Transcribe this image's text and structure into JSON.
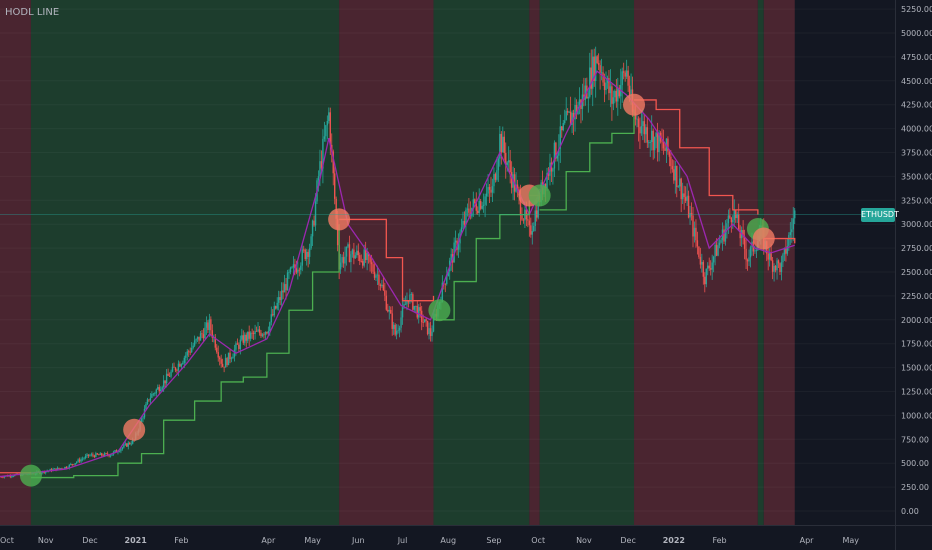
{
  "chart": {
    "indicator_title": "HODL LINE",
    "symbol": "ETHUSDT",
    "current_price": 3100,
    "colors": {
      "background": "#131722",
      "bull_region": "#1d3d2d",
      "bear_region": "#4a2530",
      "candle_up": "#26a69a",
      "candle_down": "#ef5350",
      "hodl_line_bull": "#4caf50",
      "hodl_line_bear": "#f2564f",
      "ma_line": "#9c27b0",
      "buy_marker": "#4caf50",
      "sell_marker": "#f27a64",
      "price_tag": "#26a69a",
      "axis_text": "#b2b5be"
    }
  },
  "chart_data": {
    "type": "candlestick",
    "symbol": "ETHUSDT",
    "title": "HODL LINE",
    "y_ticks": [
      0,
      250,
      500,
      750,
      1000,
      1250,
      1500,
      1750,
      2000,
      2250,
      2500,
      2750,
      3000,
      3250,
      3500,
      3750,
      4000,
      4250,
      4500,
      4750,
      5000,
      5250
    ],
    "ylim": [
      -250,
      5300
    ],
    "y_tick_format": "0.00",
    "x_ticks": [
      "Oct",
      "Nov",
      "Dec",
      "2021",
      "Feb",
      "Apr",
      "May",
      "Jun",
      "Jul",
      "Aug",
      "Sep",
      "Oct",
      "Nov",
      "Dec",
      "2022",
      "Feb",
      "Apr",
      "May"
    ],
    "x_tick_bold": [
      "2021",
      "2022"
    ],
    "x_range": [
      "2020-10-01",
      "2022-05-31"
    ],
    "last_bar_date": "2022-03-24",
    "regions": [
      {
        "start": "2020-10-01",
        "end": "2020-10-22",
        "state": "bear"
      },
      {
        "start": "2020-10-22",
        "end": "2021-05-19",
        "state": "bull"
      },
      {
        "start": "2021-05-19",
        "end": "2021-07-22",
        "state": "bear"
      },
      {
        "start": "2021-07-22",
        "end": "2021-09-25",
        "state": "bull"
      },
      {
        "start": "2021-09-25",
        "end": "2021-10-02",
        "state": "bear"
      },
      {
        "start": "2021-10-02",
        "end": "2021-12-05",
        "state": "bull"
      },
      {
        "start": "2021-12-05",
        "end": "2022-02-27",
        "state": "bear"
      },
      {
        "start": "2022-02-27",
        "end": "2022-03-03",
        "state": "bull"
      },
      {
        "start": "2022-03-03",
        "end": "2022-03-24",
        "state": "bear"
      }
    ],
    "price_path": [
      [
        "2020-10-01",
        360
      ],
      [
        "2020-10-25",
        395
      ],
      [
        "2020-11-15",
        460
      ],
      [
        "2020-11-30",
        580
      ],
      [
        "2020-12-15",
        590
      ],
      [
        "2020-12-31",
        740
      ],
      [
        "2021-01-10",
        1180
      ],
      [
        "2021-01-20",
        1350
      ],
      [
        "2021-02-05",
        1650
      ],
      [
        "2021-02-20",
        1950
      ],
      [
        "2021-03-01",
        1520
      ],
      [
        "2021-03-15",
        1800
      ],
      [
        "2021-03-31",
        1900
      ],
      [
        "2021-04-15",
        2450
      ],
      [
        "2021-04-30",
        2800
      ],
      [
        "2021-05-05",
        3500
      ],
      [
        "2021-05-12",
        4150
      ],
      [
        "2021-05-19",
        2600
      ],
      [
        "2021-05-25",
        2700
      ],
      [
        "2021-06-05",
        2650
      ],
      [
        "2021-06-15",
        2450
      ],
      [
        "2021-06-26",
        1850
      ],
      [
        "2021-07-05",
        2250
      ],
      [
        "2021-07-20",
        1850
      ],
      [
        "2021-07-31",
        2500
      ],
      [
        "2021-08-15",
        3150
      ],
      [
        "2021-08-31",
        3350
      ],
      [
        "2021-09-05",
        3900
      ],
      [
        "2021-09-15",
        3400
      ],
      [
        "2021-09-25",
        2900
      ],
      [
        "2021-10-05",
        3450
      ],
      [
        "2021-10-20",
        4050
      ],
      [
        "2021-10-31",
        4300
      ],
      [
        "2021-11-10",
        4750
      ],
      [
        "2021-11-20",
        4300
      ],
      [
        "2021-11-30",
        4600
      ],
      [
        "2021-12-04",
        4150
      ],
      [
        "2021-12-15",
        3950
      ],
      [
        "2021-12-28",
        3750
      ],
      [
        "2022-01-10",
        3200
      ],
      [
        "2022-01-22",
        2450
      ],
      [
        "2022-02-05",
        2950
      ],
      [
        "2022-02-10",
        3150
      ],
      [
        "2022-02-20",
        2650
      ],
      [
        "2022-03-01",
        2900
      ],
      [
        "2022-03-08",
        2600
      ],
      [
        "2022-03-15",
        2550
      ],
      [
        "2022-03-24",
        3100
      ]
    ],
    "series": [
      {
        "name": "HODL LINE",
        "segments": [
          {
            "state": "bear",
            "points": [
              [
                "2020-10-01",
                400
              ],
              [
                "2020-10-22",
                400
              ]
            ]
          },
          {
            "state": "bull",
            "points": [
              [
                "2020-10-22",
                350
              ],
              [
                "2020-11-20",
                370
              ],
              [
                "2020-12-20",
                500
              ],
              [
                "2021-01-05",
                600
              ],
              [
                "2021-01-20",
                950
              ],
              [
                "2021-02-10",
                1150
              ],
              [
                "2021-02-28",
                1350
              ],
              [
                "2021-03-15",
                1400
              ],
              [
                "2021-03-31",
                1650
              ],
              [
                "2021-04-15",
                2100
              ],
              [
                "2021-05-01",
                2500
              ],
              [
                "2021-05-19",
                3000
              ]
            ]
          },
          {
            "state": "bear",
            "points": [
              [
                "2021-05-19",
                3050
              ],
              [
                "2021-06-10",
                3050
              ],
              [
                "2021-06-20",
                2650
              ],
              [
                "2021-07-01",
                2200
              ],
              [
                "2021-07-22",
                2250
              ]
            ]
          },
          {
            "state": "bull",
            "points": [
              [
                "2021-07-22",
                2000
              ],
              [
                "2021-08-05",
                2400
              ],
              [
                "2021-08-20",
                2850
              ],
              [
                "2021-09-05",
                3100
              ],
              [
                "2021-09-25",
                3250
              ]
            ]
          },
          {
            "state": "bear",
            "points": [
              [
                "2021-09-25",
                3300
              ],
              [
                "2021-10-02",
                3300
              ]
            ]
          },
          {
            "state": "bull",
            "points": [
              [
                "2021-10-02",
                3150
              ],
              [
                "2021-10-20",
                3550
              ],
              [
                "2021-11-05",
                3850
              ],
              [
                "2021-11-20",
                3950
              ],
              [
                "2021-12-05",
                4200
              ]
            ]
          },
          {
            "state": "bear",
            "points": [
              [
                "2021-12-05",
                4300
              ],
              [
                "2021-12-20",
                4200
              ],
              [
                "2022-01-05",
                3800
              ],
              [
                "2022-01-25",
                3300
              ],
              [
                "2022-02-10",
                3150
              ],
              [
                "2022-02-27",
                3100
              ]
            ]
          },
          {
            "state": "bull",
            "points": [
              [
                "2022-02-27",
                2950
              ],
              [
                "2022-03-03",
                2950
              ]
            ]
          },
          {
            "state": "bear",
            "points": [
              [
                "2022-03-03",
                2850
              ],
              [
                "2022-03-24",
                2800
              ]
            ]
          }
        ]
      },
      {
        "name": "MA",
        "points": [
          [
            "2020-10-01",
            360
          ],
          [
            "2020-11-15",
            440
          ],
          [
            "2020-12-20",
            620
          ],
          [
            "2021-01-10",
            1100
          ],
          [
            "2021-02-05",
            1550
          ],
          [
            "2021-02-20",
            1850
          ],
          [
            "2021-03-10",
            1650
          ],
          [
            "2021-03-31",
            1800
          ],
          [
            "2021-04-15",
            2300
          ],
          [
            "2021-05-05",
            3400
          ],
          [
            "2021-05-12",
            3900
          ],
          [
            "2021-05-25",
            3000
          ],
          [
            "2021-06-10",
            2650
          ],
          [
            "2021-06-30",
            2150
          ],
          [
            "2021-07-20",
            2000
          ],
          [
            "2021-08-10",
            2900
          ],
          [
            "2021-09-05",
            3750
          ],
          [
            "2021-09-25",
            3100
          ],
          [
            "2021-10-20",
            3950
          ],
          [
            "2021-11-10",
            4600
          ],
          [
            "2021-11-30",
            4350
          ],
          [
            "2021-12-15",
            4100
          ],
          [
            "2022-01-10",
            3500
          ],
          [
            "2022-01-25",
            2750
          ],
          [
            "2022-02-10",
            3000
          ],
          [
            "2022-02-25",
            2750
          ],
          [
            "2022-03-08",
            2700
          ],
          [
            "2022-03-24",
            2780
          ]
        ]
      }
    ],
    "signals": [
      {
        "date": "2020-10-22",
        "price": 370,
        "type": "buy"
      },
      {
        "date": "2020-12-31",
        "price": 850,
        "type": "sell"
      },
      {
        "date": "2021-05-19",
        "price": 3050,
        "type": "sell"
      },
      {
        "date": "2021-07-26",
        "price": 2100,
        "type": "buy"
      },
      {
        "date": "2021-09-25",
        "price": 3300,
        "type": "sell"
      },
      {
        "date": "2021-10-02",
        "price": 3300,
        "type": "buy"
      },
      {
        "date": "2021-12-05",
        "price": 4250,
        "type": "sell"
      },
      {
        "date": "2022-02-27",
        "price": 2950,
        "type": "buy"
      },
      {
        "date": "2022-03-03",
        "price": 2850,
        "type": "sell"
      }
    ]
  }
}
